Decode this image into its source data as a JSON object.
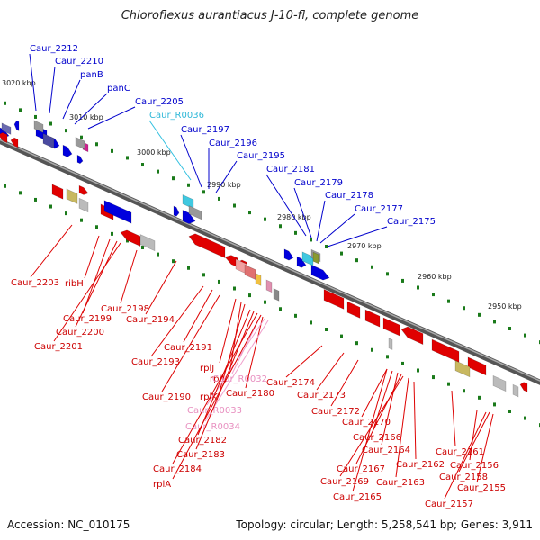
{
  "title": "Chloroflexus aurantiacus J-10-fl, complete genome",
  "accession": "Accession: NC_010175",
  "summary": "Topology: circular; Length: 5,258,541 bp; Genes: 3,911",
  "colors": {
    "backbone": "#777777",
    "plus_strand": "#0000dd",
    "minus_strand": "#e00000",
    "rna": "#40c8e0",
    "rna_minus": "#f0a0c8",
    "tick": "#1a7a1a",
    "other": "#c8b860"
  },
  "kbp_ticks": [
    {
      "label": "3020 kbp"
    },
    {
      "label": "3010 kbp"
    },
    {
      "label": "3000 kbp"
    },
    {
      "label": "2990 kbp"
    },
    {
      "label": "2980 kbp"
    },
    {
      "label": "2970 kbp"
    },
    {
      "label": "2960 kbp"
    },
    {
      "label": "2950 kbp"
    }
  ],
  "upper_labels": [
    {
      "name": "Caur_2212",
      "color": "blue"
    },
    {
      "name": "Caur_2210",
      "color": "blue"
    },
    {
      "name": "panB",
      "color": "blue"
    },
    {
      "name": "panC",
      "color": "blue"
    },
    {
      "name": "Caur_2205",
      "color": "blue"
    },
    {
      "name": "Caur_R0036",
      "color": "cyan"
    },
    {
      "name": "Caur_2197",
      "color": "blue"
    },
    {
      "name": "Caur_2196",
      "color": "blue"
    },
    {
      "name": "Caur_2195",
      "color": "blue"
    },
    {
      "name": "Caur_2181",
      "color": "blue"
    },
    {
      "name": "Caur_2179",
      "color": "blue"
    },
    {
      "name": "Caur_2178",
      "color": "blue"
    },
    {
      "name": "Caur_2177",
      "color": "blue"
    },
    {
      "name": "Caur_2175",
      "color": "blue"
    }
  ],
  "lower_labels": [
    {
      "name": "Caur_2203",
      "color": "red"
    },
    {
      "name": "ribH",
      "color": "red"
    },
    {
      "name": "Caur_2199",
      "color": "red"
    },
    {
      "name": "Caur_2200",
      "color": "red"
    },
    {
      "name": "Caur_2201",
      "color": "red"
    },
    {
      "name": "Caur_2198",
      "color": "red"
    },
    {
      "name": "Caur_2194",
      "color": "red"
    },
    {
      "name": "Caur_2193",
      "color": "red"
    },
    {
      "name": "Caur_2191",
      "color": "red"
    },
    {
      "name": "Caur_2190",
      "color": "red"
    },
    {
      "name": "rplJ",
      "color": "red"
    },
    {
      "name": "rplL",
      "color": "red"
    },
    {
      "name": "rplK",
      "color": "red"
    },
    {
      "name": "Caur_R0032",
      "color": "pink"
    },
    {
      "name": "Caur_2180",
      "color": "red"
    },
    {
      "name": "Caur_R0033",
      "color": "pink"
    },
    {
      "name": "Caur_R0034",
      "color": "pink"
    },
    {
      "name": "Caur_2182",
      "color": "red"
    },
    {
      "name": "Caur_2183",
      "color": "red"
    },
    {
      "name": "Caur_2184",
      "color": "red"
    },
    {
      "name": "rplA",
      "color": "red"
    },
    {
      "name": "Caur_2174",
      "color": "red"
    },
    {
      "name": "Caur_2173",
      "color": "red"
    },
    {
      "name": "Caur_2172",
      "color": "red"
    },
    {
      "name": "Caur_2170",
      "color": "red"
    },
    {
      "name": "Caur_2166",
      "color": "red"
    },
    {
      "name": "Caur_2164",
      "color": "red"
    },
    {
      "name": "Caur_2167",
      "color": "red"
    },
    {
      "name": "Caur_2162",
      "color": "red"
    },
    {
      "name": "Caur_2169",
      "color": "red"
    },
    {
      "name": "Caur_2163",
      "color": "red"
    },
    {
      "name": "Caur_2165",
      "color": "red"
    },
    {
      "name": "Caur_2161",
      "color": "red"
    },
    {
      "name": "Caur_2156",
      "color": "red"
    },
    {
      "name": "Caur_2158",
      "color": "red"
    },
    {
      "name": "Caur_2155",
      "color": "red"
    },
    {
      "name": "Caur_2157",
      "color": "red"
    }
  ]
}
